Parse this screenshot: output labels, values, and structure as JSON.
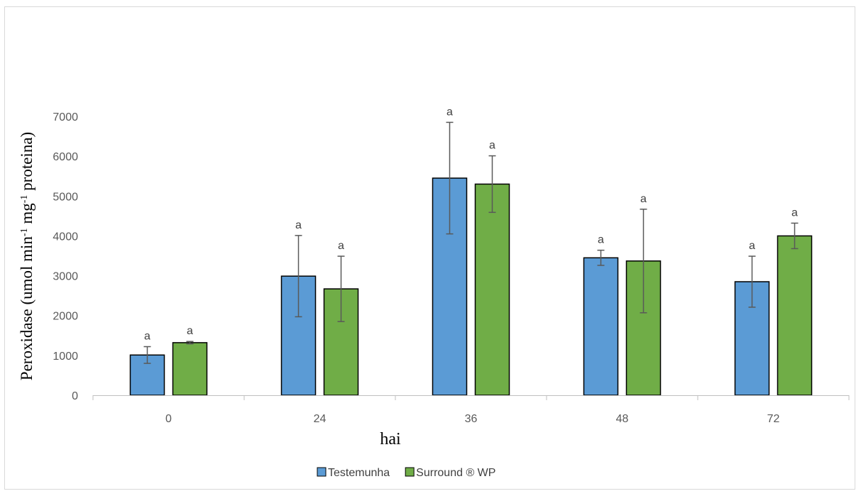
{
  "chart_data": {
    "type": "bar",
    "categories": [
      "0",
      "24",
      "36",
      "48",
      "72"
    ],
    "xlabel": "hai",
    "ylabel": {
      "prefix": "Peroxidase (umol min",
      "sup1": "-1",
      "mid": " mg",
      "sup2": "-1",
      "suffix": " proteina)"
    },
    "ylim": [
      0,
      7000
    ],
    "yticks": [
      0,
      1000,
      2000,
      3000,
      4000,
      5000,
      6000,
      7000
    ],
    "grid": false,
    "legend_position": "bottom",
    "series": [
      {
        "name": "Testemunha",
        "color": "#5b9bd5",
        "values": [
          1010,
          2990,
          5450,
          3450,
          2850
        ],
        "error": [
          210,
          1020,
          1400,
          190,
          640
        ],
        "significance": [
          "a",
          "a",
          "a",
          "a",
          "a"
        ]
      },
      {
        "name": "Surround ® WP",
        "color": "#70ad47",
        "values": [
          1320,
          2670,
          5300,
          3370,
          4000
        ],
        "error": [
          30,
          820,
          710,
          1300,
          320
        ],
        "significance": [
          "a",
          "a",
          "a",
          "a",
          "a"
        ]
      }
    ]
  }
}
